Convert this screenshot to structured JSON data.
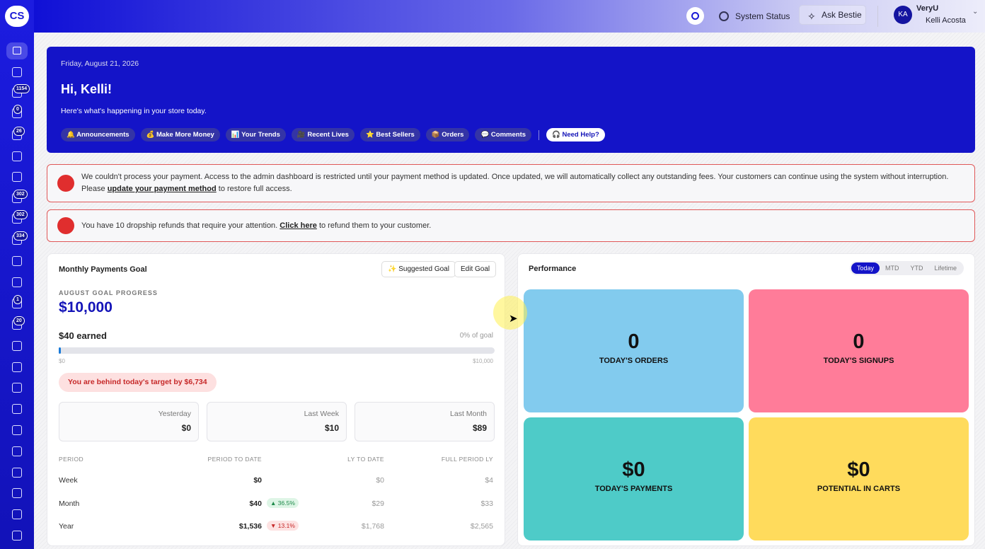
{
  "logo": "CS",
  "topbar": {
    "system_status": "System Status",
    "ask_bestie": "Ask Bestie",
    "user_initials": "KA",
    "store": "VeryU",
    "user_name": "Kelli Acosta"
  },
  "sidebar": {
    "badges": [
      1154,
      0,
      26,
      302,
      302,
      334,
      1,
      20
    ]
  },
  "hero": {
    "date": "Friday, August 21, 2026",
    "greeting": "Hi, Kelli!",
    "subtitle": "Here's what's happening in your store today.",
    "chips": [
      "🔔 Announcements",
      "💰 Make More Money",
      "📊 Your Trends",
      "🎥 Recent Lives",
      "⭐ Best Sellers",
      "📦 Orders",
      "💬 Comments"
    ],
    "help": "🎧 Need Help?"
  },
  "alerts": [
    {
      "before": "We couldn't process your payment. Access to the admin dashboard is restricted until your payment method is updated. Once updated, we will automatically collect any outstanding fees. Your customers can continue using the system without interruption. Please ",
      "link": "update your payment method",
      "after": " to restore full access."
    },
    {
      "before": "You have 10 dropship refunds that require your attention. ",
      "link": "Click here",
      "after": " to refund them to your customer."
    }
  ],
  "goal": {
    "title": "Monthly Payments Goal",
    "suggested": "✨ Suggested Goal",
    "edit": "Edit Goal",
    "label": "AUGUST GOAL PROGRESS",
    "amount": "$10,000",
    "earned": "$40 earned",
    "percent": "0% of goal",
    "min": "$0",
    "max": "$10,000",
    "behind": "You are behind today's target by $6,734",
    "stats": [
      {
        "label": "Yesterday",
        "value": "$0"
      },
      {
        "label": "Last Week",
        "value": "$10"
      },
      {
        "label": "Last Month",
        "value": "$89"
      }
    ],
    "table": {
      "headers": [
        "PERIOD",
        "PERIOD TO DATE",
        "LY TO DATE",
        "FULL PERIOD LY"
      ],
      "rows": [
        {
          "period": "Week",
          "to_date": "$0",
          "ly": "$0",
          "full": "$4"
        },
        {
          "period": "Month",
          "to_date": "$40",
          "change": "▲ 36.5%",
          "ly": "$29",
          "full": "$33"
        },
        {
          "period": "Year",
          "to_date": "$1,536",
          "change": "▼ 13.1%",
          "ly": "$1,768",
          "full": "$2,565"
        }
      ]
    }
  },
  "performance": {
    "title": "Performance",
    "tabs": [
      "Today",
      "MTD",
      "YTD",
      "Lifetime"
    ],
    "tiles": [
      {
        "value": "0",
        "label": "TODAY'S ORDERS"
      },
      {
        "value": "0",
        "label": "TODAY'S SIGNUPS"
      },
      {
        "value": "$0",
        "label": "TODAY'S PAYMENTS"
      },
      {
        "value": "$0",
        "label": "POTENTIAL IN CARTS"
      }
    ]
  }
}
